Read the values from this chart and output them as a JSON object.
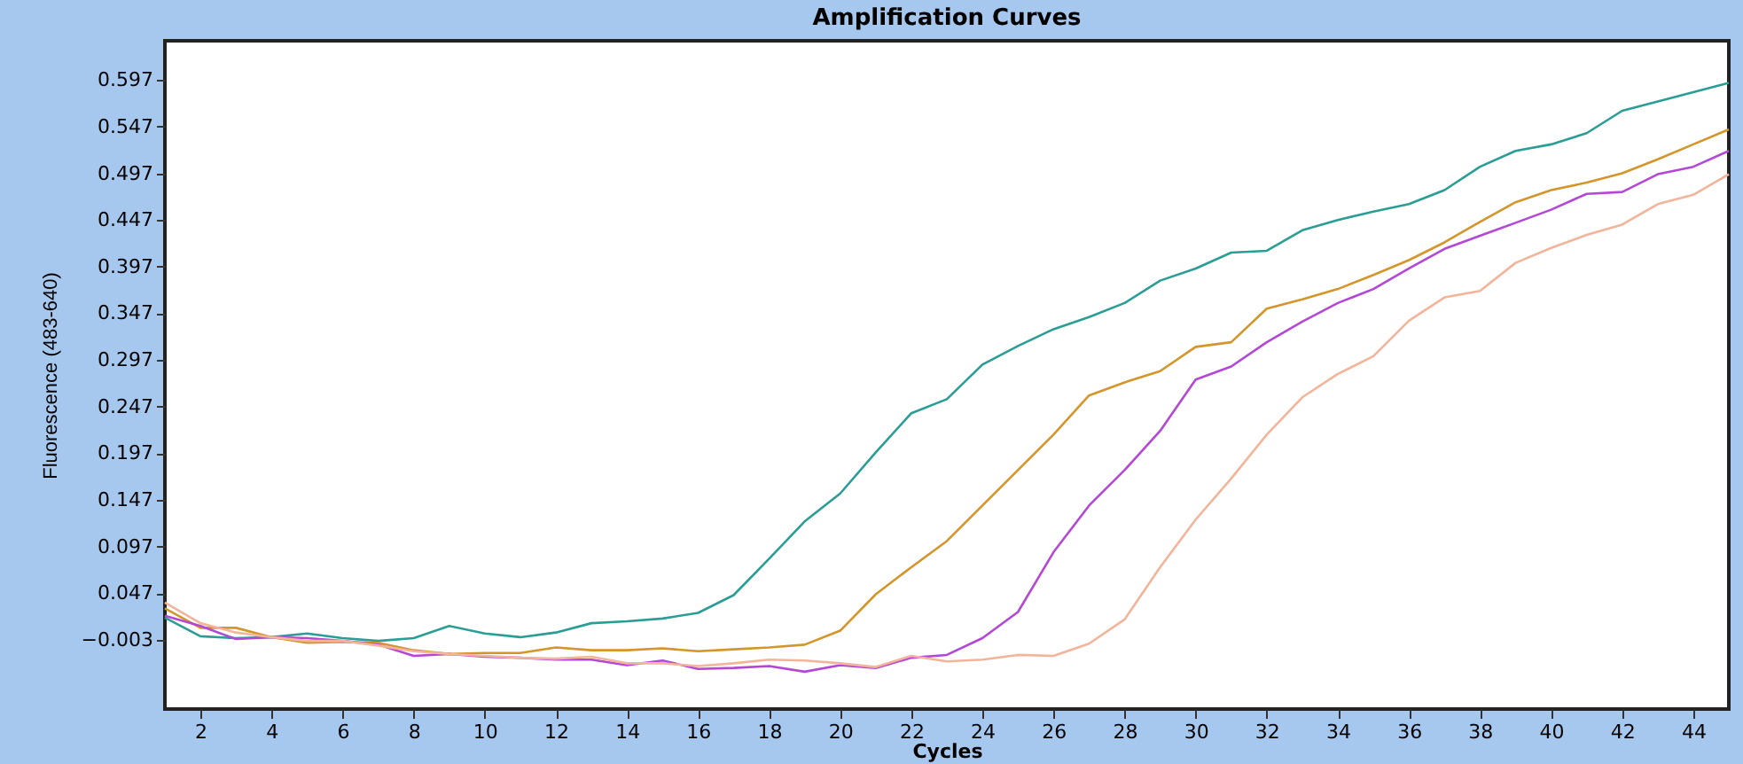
{
  "chart_data": {
    "type": "line",
    "title": "Amplification Curves",
    "xlabel": "Cycles",
    "ylabel": "Fluorescence (483-640)",
    "x": [
      1,
      2,
      3,
      4,
      5,
      6,
      7,
      8,
      9,
      10,
      11,
      12,
      13,
      14,
      15,
      16,
      17,
      18,
      19,
      20,
      21,
      22,
      23,
      24,
      25,
      26,
      27,
      28,
      29,
      30,
      31,
      32,
      33,
      34,
      35,
      36,
      37,
      38,
      39,
      40,
      41,
      42,
      43,
      44,
      45
    ],
    "series": [
      {
        "color": "#2a9d95",
        "values": [
          0.021,
          0.001,
          -0.001,
          0.0,
          0.004,
          -0.001,
          -0.004,
          -0.001,
          0.012,
          0.004,
          0.0,
          0.005,
          0.015,
          0.017,
          0.02,
          0.026,
          0.045,
          0.084,
          0.124,
          0.154,
          0.198,
          0.24,
          0.255,
          0.292,
          0.312,
          0.33,
          0.343,
          0.358,
          0.382,
          0.395,
          0.412,
          0.414,
          0.436,
          0.447,
          0.456,
          0.464,
          0.479,
          0.504,
          0.521,
          0.528,
          0.54,
          0.564,
          0.574,
          0.584,
          0.594
        ]
      },
      {
        "color": "#d4952a",
        "values": [
          0.031,
          0.01,
          0.01,
          0.0,
          -0.006,
          -0.005,
          -0.006,
          -0.014,
          -0.018,
          -0.017,
          -0.017,
          -0.011,
          -0.014,
          -0.014,
          -0.012,
          -0.015,
          -0.013,
          -0.011,
          -0.008,
          0.007,
          0.046,
          0.075,
          0.103,
          0.141,
          0.179,
          0.217,
          0.259,
          0.273,
          0.285,
          0.311,
          0.316,
          0.352,
          0.362,
          0.373,
          0.388,
          0.404,
          0.423,
          0.445,
          0.466,
          0.479,
          0.487,
          0.497,
          0.512,
          0.528,
          0.544
        ]
      },
      {
        "color": "#b347d6",
        "values": [
          0.023,
          0.012,
          -0.002,
          0.0,
          -0.001,
          -0.004,
          -0.008,
          -0.02,
          -0.018,
          -0.021,
          -0.022,
          -0.024,
          -0.024,
          -0.03,
          -0.025,
          -0.034,
          -0.033,
          -0.031,
          -0.037,
          -0.03,
          -0.033,
          -0.022,
          -0.019,
          -0.001,
          0.027,
          0.091,
          0.141,
          0.179,
          0.221,
          0.276,
          0.29,
          0.316,
          0.338,
          0.358,
          0.373,
          0.395,
          0.416,
          0.43,
          0.444,
          0.458,
          0.475,
          0.477,
          0.496,
          0.504,
          0.521
        ]
      },
      {
        "color": "#f2b49a",
        "values": [
          0.037,
          0.015,
          0.005,
          0.0,
          -0.004,
          -0.004,
          -0.009,
          -0.015,
          -0.018,
          -0.02,
          -0.022,
          -0.023,
          -0.021,
          -0.028,
          -0.028,
          -0.031,
          -0.028,
          -0.024,
          -0.025,
          -0.028,
          -0.032,
          -0.02,
          -0.026,
          -0.024,
          -0.019,
          -0.02,
          -0.007,
          0.019,
          0.075,
          0.126,
          0.17,
          0.217,
          0.257,
          0.282,
          0.301,
          0.339,
          0.364,
          0.371,
          0.401,
          0.417,
          0.431,
          0.442,
          0.464,
          0.474,
          0.496
        ]
      }
    ],
    "xlim": [
      1,
      45
    ],
    "xticks": [
      2,
      4,
      6,
      8,
      10,
      12,
      14,
      16,
      18,
      20,
      22,
      24,
      26,
      28,
      30,
      32,
      34,
      36,
      38,
      40,
      42,
      44
    ],
    "ylim": [
      -0.077,
      0.639
    ],
    "yticks": [
      -0.003,
      0.047,
      0.097,
      0.147,
      0.197,
      0.247,
      0.297,
      0.347,
      0.397,
      0.447,
      0.497,
      0.547,
      0.597
    ],
    "grid": false,
    "marker": "none",
    "line_style": "solid"
  }
}
